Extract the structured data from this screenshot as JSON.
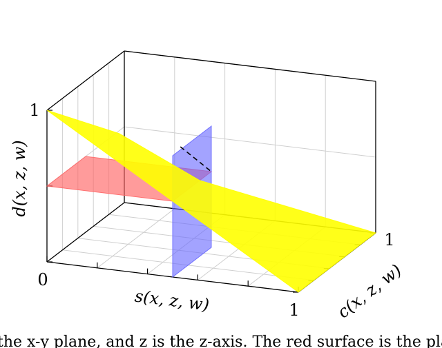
{
  "chart_data": {
    "type": "surface3d",
    "xlabel": "s(x, z, w)",
    "ylabel": "c(x, z, w)",
    "zlabel": "d(x, z, w)",
    "x_ticks": [
      {
        "value": 0,
        "label": "0"
      },
      {
        "value": 0.2,
        "label": ""
      },
      {
        "value": 0.4,
        "label": ""
      },
      {
        "value": 0.6,
        "label": ""
      },
      {
        "value": 0.8,
        "label": ""
      },
      {
        "value": 1,
        "label": "1"
      }
    ],
    "y_ticks": [
      {
        "value": 0,
        "label": ""
      },
      {
        "value": 0.2,
        "label": ""
      },
      {
        "value": 0.4,
        "label": ""
      },
      {
        "value": 0.6,
        "label": ""
      },
      {
        "value": 0.8,
        "label": ""
      },
      {
        "value": 1,
        "label": "1"
      }
    ],
    "z_ticks": [
      {
        "value": 0,
        "label": ""
      },
      {
        "value": 0.5,
        "label": ""
      },
      {
        "value": 1,
        "label": "1"
      }
    ],
    "xlim": [
      0,
      1
    ],
    "ylim": [
      0,
      1
    ],
    "zlim": [
      0,
      1
    ],
    "grid": true,
    "surfaces": [
      {
        "name": "",
        "color": "#ffff00",
        "opacity": 0.9,
        "points": [
          [
            0,
            0,
            1
          ],
          [
            1,
            0,
            0
          ],
          [
            1,
            1,
            0
          ],
          [
            0.5,
            0.35,
            0.5
          ],
          [
            0.25,
            0.12,
            0.85
          ]
        ]
      },
      {
        "name": "",
        "color": "#ff6666",
        "opacity": 0.65,
        "points": [
          [
            0,
            0,
            0.5
          ],
          [
            0.5,
            0,
            0.5
          ],
          [
            0.5,
            0.5,
            0.5
          ],
          [
            0,
            0.5,
            0.5
          ]
        ]
      },
      {
        "name": "",
        "color": "#6666ff",
        "opacity": 0.6,
        "points": [
          [
            0.5,
            0,
            0
          ],
          [
            0.5,
            0.5,
            0
          ],
          [
            0.5,
            0.5,
            0.8
          ],
          [
            0.5,
            0,
            0.8
          ]
        ]
      }
    ],
    "dashed_line": [
      [
        0.5,
        0.1,
        0.82
      ],
      [
        0.5,
        0.5,
        0.5
      ]
    ],
    "caption": "the x-y plane, and z is the z-axis. The red surface is the plane where"
  }
}
